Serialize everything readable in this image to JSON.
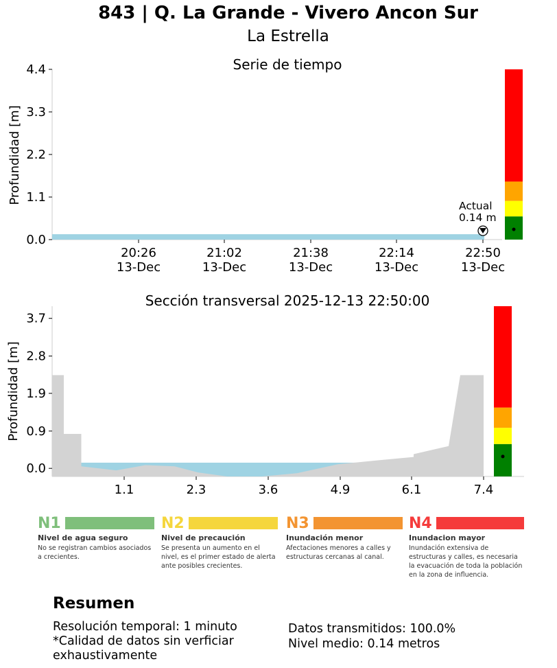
{
  "title": "843 | Q. La Grande - Vivero Ancon Sur",
  "subtitle": "La Estrella",
  "chart_data": [
    {
      "type": "area",
      "title": "Serie de tiempo",
      "ylabel": "Profundidad [m]",
      "ylim": [
        0,
        4.4
      ],
      "yticks": [
        "0.0",
        "1.1",
        "2.2",
        "3.3",
        "4.4"
      ],
      "xticks": [
        {
          "time": "20:26",
          "date": "13-Dec"
        },
        {
          "time": "21:02",
          "date": "13-Dec"
        },
        {
          "time": "21:38",
          "date": "13-Dec"
        },
        {
          "time": "22:14",
          "date": "13-Dec"
        },
        {
          "time": "22:50",
          "date": "13-Dec"
        }
      ],
      "xrange": [
        "2025-12-13 19:54",
        "2025-12-13 22:50"
      ],
      "series": [
        {
          "values": [
            0.14,
            0.14,
            0.14,
            0.14,
            0.14,
            0.14
          ]
        }
      ],
      "current": {
        "label": "Actual",
        "value_label": "0.14 m",
        "value": 0.14
      },
      "alert_levels": [
        {
          "level": "N1",
          "from": 0,
          "to": 0.6,
          "color": "#008000"
        },
        {
          "level": "N2",
          "from": 0.6,
          "to": 1.0,
          "color": "#ffff00"
        },
        {
          "level": "N3",
          "from": 1.0,
          "to": 1.5,
          "color": "#ffa500"
        },
        {
          "level": "N4",
          "from": 1.5,
          "to": 4.4,
          "color": "#ff0000"
        }
      ]
    },
    {
      "type": "area",
      "title": "Sección transversal 2025-12-13 22:50:00",
      "ylabel": "Profundidad [m]",
      "ylim": [
        -0.2,
        4.0
      ],
      "yticks": [
        "0.0",
        "0.9",
        "1.9",
        "2.8",
        "3.7"
      ],
      "xticks": [
        "1.1",
        "2.3",
        "3.6",
        "4.9",
        "6.1",
        "7.4"
      ],
      "xlim": [
        0,
        8.2
      ],
      "water_level": 0.14,
      "ground_profile": {
        "x": [
          0,
          0,
          0.2,
          0.2,
          0.5,
          0.5,
          1.1,
          1.6,
          2.1,
          2.5,
          3.0,
          3.6,
          4.2,
          4.9,
          5.6,
          6.2,
          6.2,
          6.8,
          7.0,
          7.4,
          7.4
        ],
        "y": [
          -0.2,
          2.3,
          2.3,
          0.85,
          0.85,
          0.05,
          -0.05,
          0.08,
          0.05,
          -0.1,
          -0.2,
          -0.2,
          -0.12,
          0.1,
          0.2,
          0.28,
          0.35,
          0.55,
          2.3,
          2.3,
          -0.2
        ]
      },
      "current_value": 0.14,
      "alert_levels": [
        {
          "level": "N1",
          "from": -0.2,
          "to": 0.6,
          "color": "#008000"
        },
        {
          "level": "N2",
          "from": 0.6,
          "to": 1.0,
          "color": "#ffff00"
        },
        {
          "level": "N3",
          "from": 1.0,
          "to": 1.5,
          "color": "#ffa500"
        },
        {
          "level": "N4",
          "from": 1.5,
          "to": 4.0,
          "color": "#ff0000"
        }
      ]
    }
  ],
  "legend": [
    {
      "code": "N1",
      "color": "#7fbf7b",
      "name": "Nivel de agua seguro",
      "desc": "No se registran cambios asociados a crecientes."
    },
    {
      "code": "N2",
      "color": "#f5d63d",
      "name": "Nivel de precaución",
      "desc": "Se presenta un aumento en el nivel, es el primer estado de alerta ante posibles crecientes."
    },
    {
      "code": "N3",
      "color": "#f39431",
      "name": "Inundación menor",
      "desc": "Afectaciones menores a calles y estructuras cercanas al canal."
    },
    {
      "code": "N4",
      "color": "#f53b3b",
      "name": "Inundacion mayor",
      "desc": "Inundación extensiva de estructuras y calles, es necesaria la evacuación de toda la población en la zona de influencia."
    }
  ],
  "summary": {
    "title": "Resumen",
    "left_lines": [
      "Resolución temporal: 1 minuto",
      "*Calidad de datos sin verficiar",
      "exhaustivamente"
    ],
    "right_lines": [
      "Datos transmitidos: 100.0%",
      "Nivel medio: 0.14 metros"
    ]
  },
  "colors": {
    "water": "#9fd3e3",
    "ground": "#d3d3d3",
    "axis": "#cccccc"
  }
}
